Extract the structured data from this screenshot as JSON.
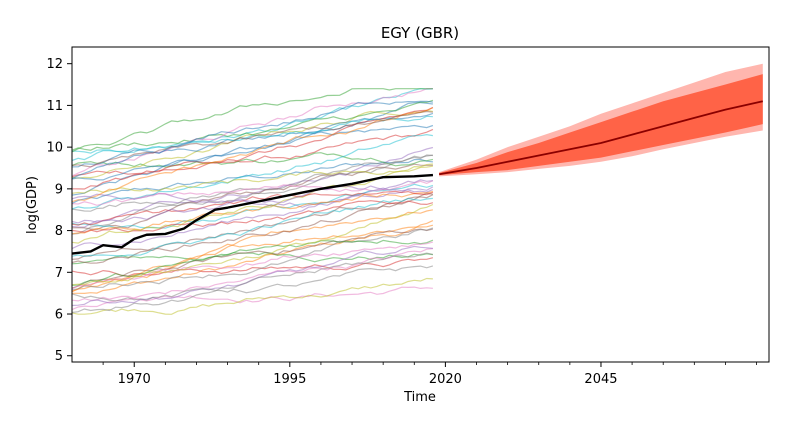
{
  "chart_data": {
    "type": "line",
    "title": "EGY (GBR)",
    "xlabel": "Time",
    "ylabel": "log(GDP)",
    "xlim": [
      1960,
      2072
    ],
    "ylim": [
      4.85,
      12.4
    ],
    "x_ticks": [
      1970,
      1995,
      2020,
      2045
    ],
    "y_ticks": [
      5,
      6,
      7,
      8,
      9,
      10,
      11,
      12
    ],
    "grid": false,
    "legend": "none",
    "highlight_series": {
      "color": "#000000",
      "x": [
        1960,
        1963,
        1965,
        1968,
        1970,
        1972,
        1975,
        1978,
        1980,
        1983,
        1985,
        1990,
        1995,
        2000,
        2005,
        2010,
        2015,
        2018
      ],
      "y": [
        7.45,
        7.5,
        7.65,
        7.6,
        7.8,
        7.9,
        7.92,
        8.05,
        8.25,
        8.5,
        8.55,
        8.7,
        8.85,
        9.0,
        9.12,
        9.28,
        9.3,
        9.33
      ]
    },
    "forecast": {
      "median_color": "#8b0000",
      "inner_band_color": "#ff6347",
      "outer_band_color": "#ffb6ae",
      "x": [
        2019,
        2025,
        2030,
        2035,
        2040,
        2045,
        2050,
        2055,
        2060,
        2065,
        2071
      ],
      "median": [
        9.35,
        9.5,
        9.65,
        9.8,
        9.95,
        10.1,
        10.3,
        10.5,
        10.7,
        10.9,
        11.1
      ],
      "inner_lower": [
        9.33,
        9.4,
        9.45,
        9.55,
        9.65,
        9.75,
        9.9,
        10.05,
        10.2,
        10.35,
        10.55
      ],
      "inner_upper": [
        9.38,
        9.62,
        9.88,
        10.1,
        10.35,
        10.6,
        10.85,
        11.1,
        11.3,
        11.5,
        11.75
      ],
      "outer_lower": [
        9.3,
        9.35,
        9.4,
        9.48,
        9.55,
        9.65,
        9.78,
        9.95,
        10.1,
        10.25,
        10.4
      ],
      "outer_upper": [
        9.4,
        9.7,
        10.0,
        10.25,
        10.5,
        10.8,
        11.05,
        11.3,
        11.55,
        11.8,
        12.0
      ]
    },
    "background_series_count": 50,
    "background_x_range": [
      1960,
      2018
    ]
  }
}
